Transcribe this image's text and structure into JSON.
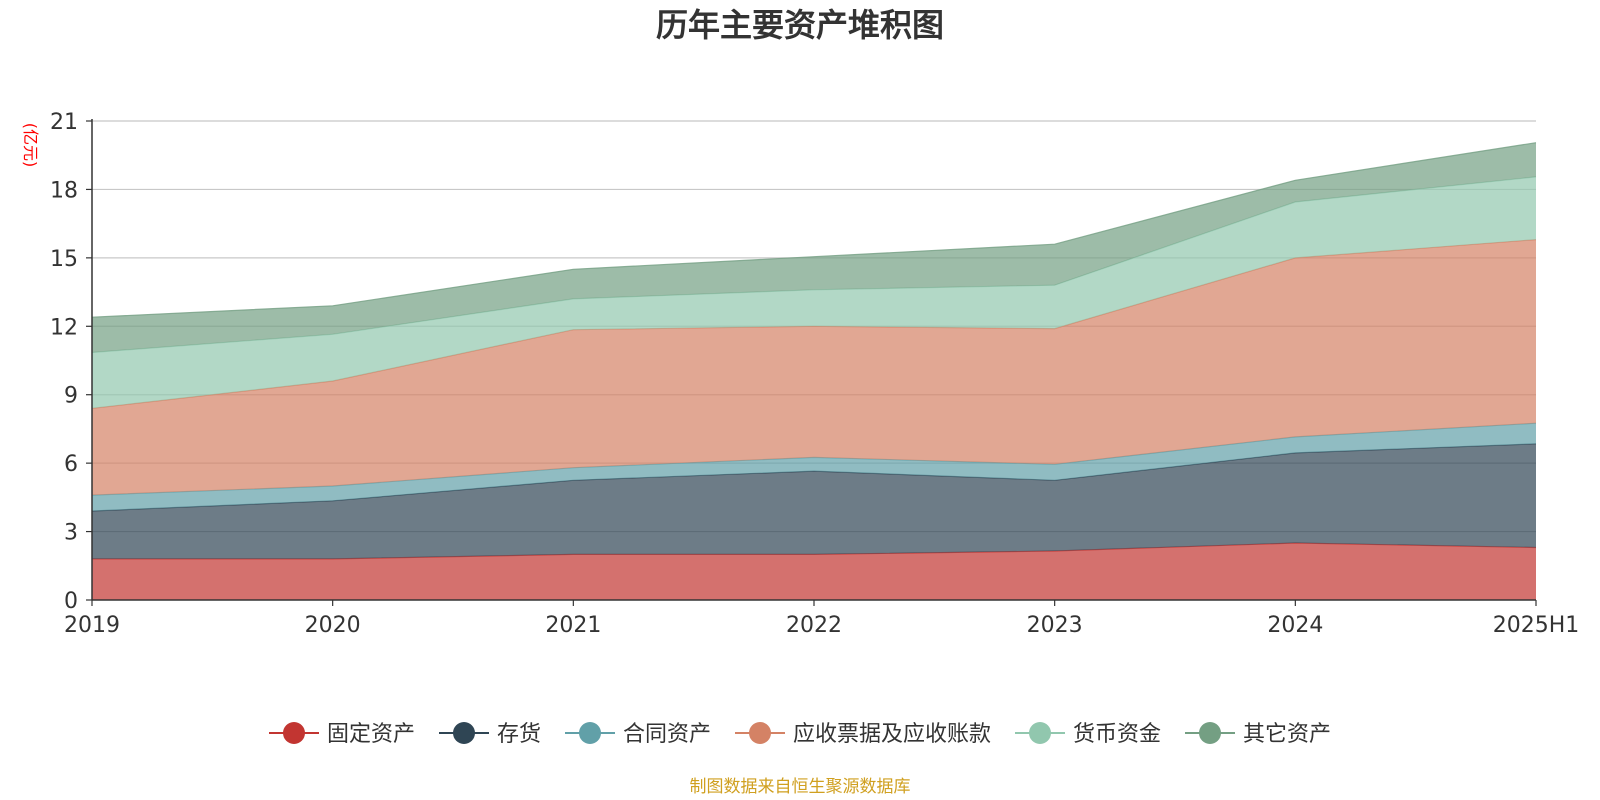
{
  "chart_data": {
    "type": "area",
    "stacked": true,
    "title": "历年主要资产堆积图",
    "ylabel": "(亿元)",
    "xlabel": "",
    "categories": [
      "2019",
      "2020",
      "2021",
      "2022",
      "2023",
      "2024",
      "2025H1"
    ],
    "ylim": [
      0,
      21
    ],
    "yticks": [
      0,
      3,
      6,
      9,
      12,
      15,
      18,
      21
    ],
    "grid": true,
    "legend_position": "bottom",
    "series": [
      {
        "name": "固定资产",
        "color": "#c23531",
        "values": [
          1.8,
          1.8,
          2.0,
          2.0,
          2.15,
          2.5,
          2.3
        ]
      },
      {
        "name": "存货",
        "color": "#2f4554",
        "values": [
          2.1,
          2.55,
          3.25,
          3.65,
          3.1,
          3.95,
          4.55
        ]
      },
      {
        "name": "合同资产",
        "color": "#61a0a8",
        "values": [
          0.7,
          0.65,
          0.55,
          0.6,
          0.7,
          0.7,
          0.9
        ]
      },
      {
        "name": "应收票据及应收账款",
        "color": "#d48265",
        "values": [
          3.8,
          4.6,
          6.05,
          5.75,
          5.95,
          7.85,
          8.05
        ]
      },
      {
        "name": "货币资金",
        "color": "#91c7ae",
        "values": [
          2.45,
          2.05,
          1.35,
          1.6,
          1.9,
          2.45,
          2.75
        ]
      },
      {
        "name": "其它资产",
        "color": "#749f83",
        "values": [
          1.55,
          1.25,
          1.3,
          1.45,
          1.8,
          0.95,
          1.5
        ]
      }
    ],
    "footer": "制图数据来自恒生聚源数据库"
  }
}
